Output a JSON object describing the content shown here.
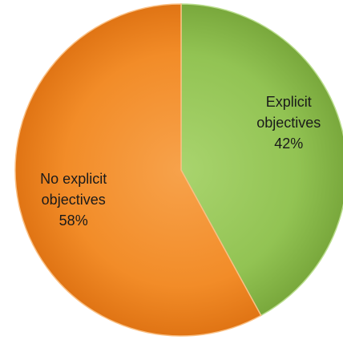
{
  "chart_data": {
    "type": "pie",
    "title": "",
    "slices": [
      {
        "label_lines": [
          "Explicit",
          "objectives",
          "42%"
        ],
        "value": 42,
        "color": "#92c353",
        "color_light": "#a9d46e",
        "color_dark": "#79a83c",
        "stroke": "#b9dd8c"
      },
      {
        "label_lines": [
          "No explicit",
          "objectives",
          "58%"
        ],
        "value": 58,
        "color": "#f28c28",
        "color_light": "#f7a24b",
        "color_dark": "#e07414",
        "stroke": "#f9bf83"
      }
    ],
    "start_angle": "12 o'clock",
    "direction": "clockwise",
    "legend": "none"
  }
}
